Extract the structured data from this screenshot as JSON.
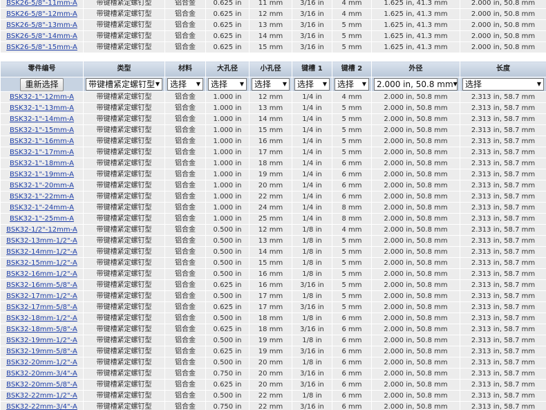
{
  "top_table": {
    "rows": [
      [
        "BSK26-5/8\"-11mm-A",
        "带键槽紧定螺钉型",
        "铝合金",
        "0.625 in",
        "11 mm",
        "3/16 in",
        "4 mm",
        "1.625 in, 41.3 mm",
        "2.000 in, 50.8 mm"
      ],
      [
        "BSK26-5/8\"-12mm-A",
        "带键槽紧定螺钉型",
        "铝合金",
        "0.625 in",
        "12 mm",
        "3/16 in",
        "4 mm",
        "1.625 in, 41.3 mm",
        "2.000 in, 50.8 mm"
      ],
      [
        "BSK26-5/8\"-13mm-A",
        "带键槽紧定螺钉型",
        "铝合金",
        "0.625 in",
        "13 mm",
        "3/16 in",
        "5 mm",
        "1.625 in, 41.3 mm",
        "2.000 in, 50.8 mm"
      ],
      [
        "BSK26-5/8\"-14mm-A",
        "带键槽紧定螺钉型",
        "铝合金",
        "0.625 in",
        "14 mm",
        "3/16 in",
        "5 mm",
        "1.625 in, 41.3 mm",
        "2.000 in, 50.8 mm"
      ],
      [
        "BSK26-5/8\"-15mm-A",
        "带键槽紧定螺钉型",
        "铝合金",
        "0.625 in",
        "15 mm",
        "3/16 in",
        "5 mm",
        "1.625 in, 41.3 mm",
        "2.000 in, 50.8 mm"
      ]
    ]
  },
  "main_table": {
    "header": [
      "零件编号",
      "类型",
      "材料",
      "大孔径",
      "小孔径",
      "键槽 1",
      "键槽 2",
      "外径",
      "长度"
    ],
    "reset_button": "重新选择",
    "filters": [
      "带键槽紧定螺钉型",
      "选择",
      "选择",
      "选择",
      "选择",
      "选择",
      "2.000 in, 50.8 mm",
      "选择"
    ],
    "rows": [
      [
        "BSK32-1\"-12mm-A",
        "带键槽紧定螺钉型",
        "铝合金",
        "1.000 in",
        "12 mm",
        "1/4 in",
        "4 mm",
        "2.000 in, 50.8 mm",
        "2.313 in, 58.7 mm"
      ],
      [
        "BSK32-1\"-13mm-A",
        "带键槽紧定螺钉型",
        "铝合金",
        "1.000 in",
        "13 mm",
        "1/4 in",
        "5 mm",
        "2.000 in, 50.8 mm",
        "2.313 in, 58.7 mm"
      ],
      [
        "BSK32-1\"-14mm-A",
        "带键槽紧定螺钉型",
        "铝合金",
        "1.000 in",
        "14 mm",
        "1/4 in",
        "5 mm",
        "2.000 in, 50.8 mm",
        "2.313 in, 58.7 mm"
      ],
      [
        "BSK32-1\"-15mm-A",
        "带键槽紧定螺钉型",
        "铝合金",
        "1.000 in",
        "15 mm",
        "1/4 in",
        "5 mm",
        "2.000 in, 50.8 mm",
        "2.313 in, 58.7 mm"
      ],
      [
        "BSK32-1\"-16mm-A",
        "带键槽紧定螺钉型",
        "铝合金",
        "1.000 in",
        "16 mm",
        "1/4 in",
        "5 mm",
        "2.000 in, 50.8 mm",
        "2.313 in, 58.7 mm"
      ],
      [
        "BSK32-1\"-17mm-A",
        "带键槽紧定螺钉型",
        "铝合金",
        "1.000 in",
        "17 mm",
        "1/4 in",
        "5 mm",
        "2.000 in, 50.8 mm",
        "2.313 in, 58.7 mm"
      ],
      [
        "BSK32-1\"-18mm-A",
        "带键槽紧定螺钉型",
        "铝合金",
        "1.000 in",
        "18 mm",
        "1/4 in",
        "6 mm",
        "2.000 in, 50.8 mm",
        "2.313 in, 58.7 mm"
      ],
      [
        "BSK32-1\"-19mm-A",
        "带键槽紧定螺钉型",
        "铝合金",
        "1.000 in",
        "19 mm",
        "1/4 in",
        "6 mm",
        "2.000 in, 50.8 mm",
        "2.313 in, 58.7 mm"
      ],
      [
        "BSK32-1\"-20mm-A",
        "带键槽紧定螺钉型",
        "铝合金",
        "1.000 in",
        "20 mm",
        "1/4 in",
        "6 mm",
        "2.000 in, 50.8 mm",
        "2.313 in, 58.7 mm"
      ],
      [
        "BSK32-1\"-22mm-A",
        "带键槽紧定螺钉型",
        "铝合金",
        "1.000 in",
        "22 mm",
        "1/4 in",
        "6 mm",
        "2.000 in, 50.8 mm",
        "2.313 in, 58.7 mm"
      ],
      [
        "BSK32-1\"-24mm-A",
        "带键槽紧定螺钉型",
        "铝合金",
        "1.000 in",
        "24 mm",
        "1/4 in",
        "8 mm",
        "2.000 in, 50.8 mm",
        "2.313 in, 58.7 mm"
      ],
      [
        "BSK32-1\"-25mm-A",
        "带键槽紧定螺钉型",
        "铝合金",
        "1.000 in",
        "25 mm",
        "1/4 in",
        "8 mm",
        "2.000 in, 50.8 mm",
        "2.313 in, 58.7 mm"
      ],
      [
        "BSK32-1/2\"-12mm-A",
        "带键槽紧定螺钉型",
        "铝合金",
        "0.500 in",
        "12 mm",
        "1/8 in",
        "4 mm",
        "2.000 in, 50.8 mm",
        "2.313 in, 58.7 mm"
      ],
      [
        "BSK32-13mm-1/2\"-A",
        "带键槽紧定螺钉型",
        "铝合金",
        "0.500 in",
        "13 mm",
        "1/8 in",
        "5 mm",
        "2.000 in, 50.8 mm",
        "2.313 in, 58.7 mm"
      ],
      [
        "BSK32-14mm-1/2\"-A",
        "带键槽紧定螺钉型",
        "铝合金",
        "0.500 in",
        "14 mm",
        "1/8 in",
        "5 mm",
        "2.000 in, 50.8 mm",
        "2.313 in, 58.7 mm"
      ],
      [
        "BSK32-15mm-1/2\"-A",
        "带键槽紧定螺钉型",
        "铝合金",
        "0.500 in",
        "15 mm",
        "1/8 in",
        "5 mm",
        "2.000 in, 50.8 mm",
        "2.313 in, 58.7 mm"
      ],
      [
        "BSK32-16mm-1/2\"-A",
        "带键槽紧定螺钉型",
        "铝合金",
        "0.500 in",
        "16 mm",
        "1/8 in",
        "5 mm",
        "2.000 in, 50.8 mm",
        "2.313 in, 58.7 mm"
      ],
      [
        "BSK32-16mm-5/8\"-A",
        "带键槽紧定螺钉型",
        "铝合金",
        "0.625 in",
        "16 mm",
        "3/16 in",
        "5 mm",
        "2.000 in, 50.8 mm",
        "2.313 in, 58.7 mm"
      ],
      [
        "BSK32-17mm-1/2\"-A",
        "带键槽紧定螺钉型",
        "铝合金",
        "0.500 in",
        "17 mm",
        "1/8 in",
        "5 mm",
        "2.000 in, 50.8 mm",
        "2.313 in, 58.7 mm"
      ],
      [
        "BSK32-17mm-5/8\"-A",
        "带键槽紧定螺钉型",
        "铝合金",
        "0.625 in",
        "17 mm",
        "3/16 in",
        "5 mm",
        "2.000 in, 50.8 mm",
        "2.313 in, 58.7 mm"
      ],
      [
        "BSK32-18mm-1/2\"-A",
        "带键槽紧定螺钉型",
        "铝合金",
        "0.500 in",
        "18 mm",
        "1/8 in",
        "6 mm",
        "2.000 in, 50.8 mm",
        "2.313 in, 58.7 mm"
      ],
      [
        "BSK32-18mm-5/8\"-A",
        "带键槽紧定螺钉型",
        "铝合金",
        "0.625 in",
        "18 mm",
        "3/16 in",
        "6 mm",
        "2.000 in, 50.8 mm",
        "2.313 in, 58.7 mm"
      ],
      [
        "BSK32-19mm-1/2\"-A",
        "带键槽紧定螺钉型",
        "铝合金",
        "0.500 in",
        "19 mm",
        "1/8 in",
        "6 mm",
        "2.000 in, 50.8 mm",
        "2.313 in, 58.7 mm"
      ],
      [
        "BSK32-19mm-5/8\"-A",
        "带键槽紧定螺钉型",
        "铝合金",
        "0.625 in",
        "19 mm",
        "3/16 in",
        "6 mm",
        "2.000 in, 50.8 mm",
        "2.313 in, 58.7 mm"
      ],
      [
        "BSK32-20mm-1/2\"-A",
        "带键槽紧定螺钉型",
        "铝合金",
        "0.500 in",
        "20 mm",
        "1/8 in",
        "6 mm",
        "2.000 in, 50.8 mm",
        "2.313 in, 58.7 mm"
      ],
      [
        "BSK32-20mm-3/4\"-A",
        "带键槽紧定螺钉型",
        "铝合金",
        "0.750 in",
        "20 mm",
        "3/16 in",
        "6 mm",
        "2.000 in, 50.8 mm",
        "2.313 in, 58.7 mm"
      ],
      [
        "BSK32-20mm-5/8\"-A",
        "带键槽紧定螺钉型",
        "铝合金",
        "0.625 in",
        "20 mm",
        "3/16 in",
        "6 mm",
        "2.000 in, 50.8 mm",
        "2.313 in, 58.7 mm"
      ],
      [
        "BSK32-22mm-1/2\"-A",
        "带键槽紧定螺钉型",
        "铝合金",
        "0.500 in",
        "22 mm",
        "1/8 in",
        "6 mm",
        "2.000 in, 50.8 mm",
        "2.313 in, 58.7 mm"
      ],
      [
        "BSK32-22mm-3/4\"-A",
        "带键槽紧定螺钉型",
        "铝合金",
        "0.750 in",
        "22 mm",
        "3/16 in",
        "6 mm",
        "2.000 in, 50.8 mm",
        "2.313 in, 58.7 mm"
      ]
    ]
  }
}
